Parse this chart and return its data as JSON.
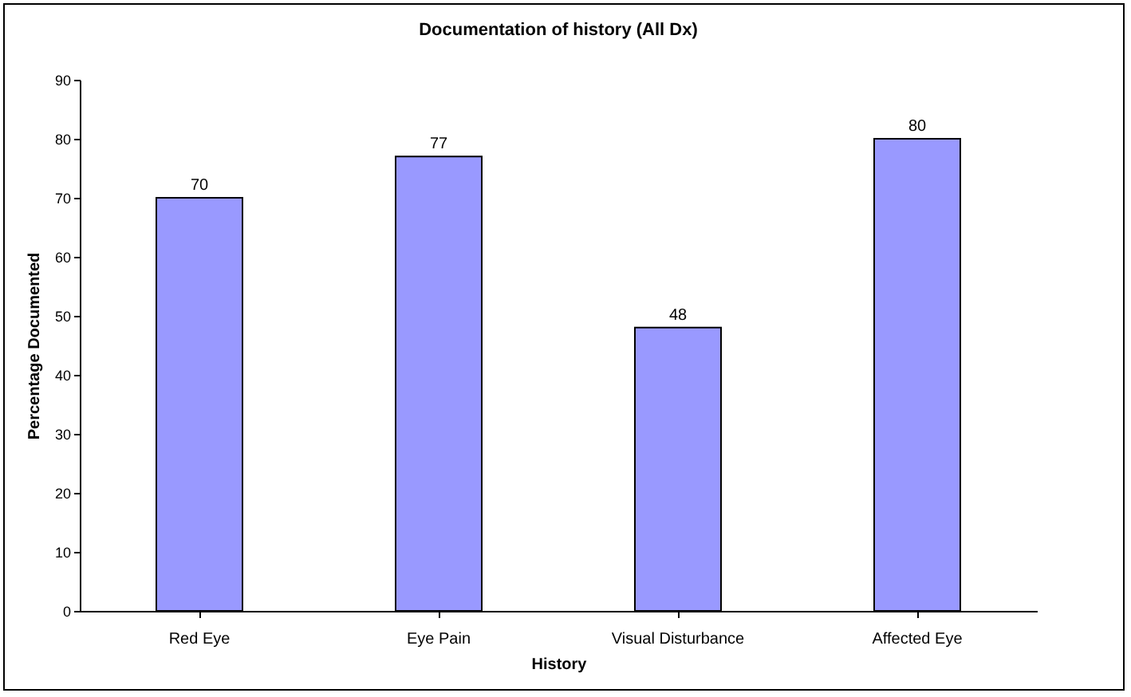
{
  "chart_data": {
    "type": "bar",
    "title": "Documentation of history (All Dx)",
    "xlabel": "History",
    "ylabel": "Percentage Documented",
    "categories": [
      "Red Eye",
      "Eye Pain",
      "Visual Disturbance",
      "Affected Eye"
    ],
    "values": [
      70,
      77,
      48,
      80
    ],
    "color": "#9999ff",
    "ylim": [
      0,
      90
    ],
    "yticks": [
      0,
      10,
      20,
      30,
      40,
      50,
      60,
      70,
      80,
      90
    ],
    "grid": false,
    "data_labels": true
  }
}
